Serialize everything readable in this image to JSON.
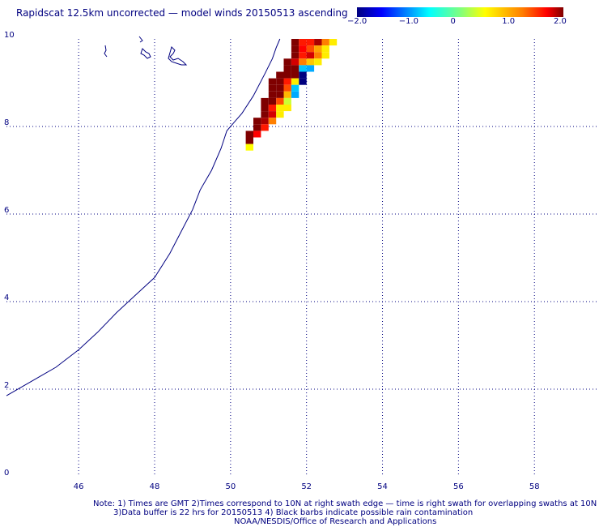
{
  "title": "Rapidscat 12.5km uncorrected — model winds 20150513 ascending",
  "colorbar": {
    "min": -2.0,
    "max": 2.0,
    "tick_labels": [
      "−2.0",
      "−1.0",
      "0",
      "1.0",
      "2.0"
    ],
    "tick_values": [
      -2.0,
      -1.0,
      0.0,
      1.0,
      2.0
    ]
  },
  "axes": {
    "x_ticks": [
      "46",
      "48",
      "50",
      "52",
      "54",
      "56",
      "58"
    ],
    "x_tick_values": [
      46,
      48,
      50,
      52,
      54,
      56,
      58
    ],
    "y_ticks": [
      "0",
      "2",
      "4",
      "6",
      "8",
      "10"
    ],
    "y_tick_values": [
      0,
      2,
      4,
      6,
      8,
      10
    ],
    "x_range": [
      44.1,
      59.7
    ],
    "y_range": [
      0,
      10
    ],
    "grid": true
  },
  "coastline": [
    [
      44.1,
      1.85
    ],
    [
      45.0,
      2.3
    ],
    [
      45.4,
      2.5
    ],
    [
      46.0,
      2.9
    ],
    [
      46.5,
      3.3
    ],
    [
      47.0,
      3.75
    ],
    [
      47.5,
      4.15
    ],
    [
      48.0,
      4.55
    ],
    [
      48.4,
      5.1
    ],
    [
      48.7,
      5.6
    ],
    [
      49.0,
      6.1
    ],
    [
      49.2,
      6.55
    ],
    [
      49.5,
      7.0
    ],
    [
      49.75,
      7.5
    ],
    [
      49.9,
      7.9
    ],
    [
      50.1,
      8.1
    ],
    [
      50.3,
      8.3
    ],
    [
      50.6,
      8.7
    ],
    [
      50.9,
      9.2
    ],
    [
      51.1,
      9.55
    ],
    [
      51.2,
      9.8
    ],
    [
      51.3,
      10.0
    ]
  ],
  "swath": [
    {
      "lat": 10.0,
      "cells": [
        [
          51.6,
          2.0
        ],
        [
          51.8,
          1.6
        ],
        [
          52.0,
          1.6
        ],
        [
          52.2,
          1.9
        ],
        [
          52.4,
          1.2
        ],
        [
          52.6,
          0.6
        ]
      ]
    },
    {
      "lat": 9.85,
      "cells": [
        [
          51.6,
          2.0
        ],
        [
          51.8,
          1.7
        ],
        [
          52.0,
          1.4
        ],
        [
          52.2,
          1.0
        ],
        [
          52.4,
          0.6
        ]
      ]
    },
    {
      "lat": 9.7,
      "cells": [
        [
          51.6,
          2.0
        ],
        [
          51.8,
          1.6
        ],
        [
          52.0,
          1.8
        ],
        [
          52.2,
          1.2
        ],
        [
          52.4,
          0.6
        ]
      ]
    },
    {
      "lat": 9.55,
      "cells": [
        [
          51.4,
          2.0
        ],
        [
          51.6,
          1.8
        ],
        [
          51.8,
          1.2
        ],
        [
          52.0,
          0.8
        ],
        [
          52.2,
          0.6
        ]
      ]
    },
    {
      "lat": 9.4,
      "cells": [
        [
          51.4,
          2.0
        ],
        [
          51.6,
          2.0
        ],
        [
          51.8,
          -0.8
        ],
        [
          52.0,
          -0.9
        ]
      ]
    },
    {
      "lat": 9.25,
      "cells": [
        [
          51.2,
          2.0
        ],
        [
          51.4,
          2.0
        ],
        [
          51.6,
          2.0
        ],
        [
          51.8,
          -2.0
        ]
      ]
    },
    {
      "lat": 9.1,
      "cells": [
        [
          51.0,
          2.0
        ],
        [
          51.2,
          2.0
        ],
        [
          51.4,
          1.6
        ],
        [
          51.6,
          0.6
        ],
        [
          51.8,
          -2.0
        ]
      ]
    },
    {
      "lat": 8.95,
      "cells": [
        [
          51.0,
          2.0
        ],
        [
          51.2,
          2.0
        ],
        [
          51.4,
          1.4
        ],
        [
          51.6,
          -0.8
        ]
      ]
    },
    {
      "lat": 8.8,
      "cells": [
        [
          51.0,
          2.0
        ],
        [
          51.2,
          2.0
        ],
        [
          51.4,
          0.9
        ],
        [
          51.6,
          -0.9
        ]
      ]
    },
    {
      "lat": 8.65,
      "cells": [
        [
          50.8,
          2.0
        ],
        [
          51.0,
          2.0
        ],
        [
          51.2,
          1.4
        ],
        [
          51.4,
          0.3
        ]
      ]
    },
    {
      "lat": 8.5,
      "cells": [
        [
          50.8,
          2.0
        ],
        [
          51.0,
          1.6
        ],
        [
          51.2,
          0.6
        ],
        [
          51.4,
          0.6
        ]
      ]
    },
    {
      "lat": 8.35,
      "cells": [
        [
          50.8,
          2.0
        ],
        [
          51.0,
          1.8
        ],
        [
          51.2,
          0.6
        ]
      ]
    },
    {
      "lat": 8.2,
      "cells": [
        [
          50.6,
          2.0
        ],
        [
          50.8,
          1.9
        ],
        [
          51.0,
          1.2
        ]
      ]
    },
    {
      "lat": 8.05,
      "cells": [
        [
          50.6,
          2.0
        ],
        [
          50.8,
          1.6
        ]
      ]
    },
    {
      "lat": 7.9,
      "cells": [
        [
          50.4,
          2.0
        ],
        [
          50.6,
          1.7
        ]
      ]
    },
    {
      "lat": 7.75,
      "cells": [
        [
          50.4,
          2.0
        ]
      ]
    },
    {
      "lat": 7.6,
      "cells": [
        [
          50.4,
          0.5
        ]
      ]
    }
  ],
  "notes": {
    "line1": "Note: 1) Times are GMT 2)Times correspond to 10N at right swath edge — time is right swath for overlapping swaths at 10N",
    "line2": "3)Data buffer is 22 hrs for 20150513 4) Black barbs indicate possible rain contamination",
    "line3": "NOAA/NESDIS/Office of Research and Applications"
  },
  "colors": {
    "text": "#000080",
    "grid": "#000080",
    "coastline": "#000080"
  }
}
